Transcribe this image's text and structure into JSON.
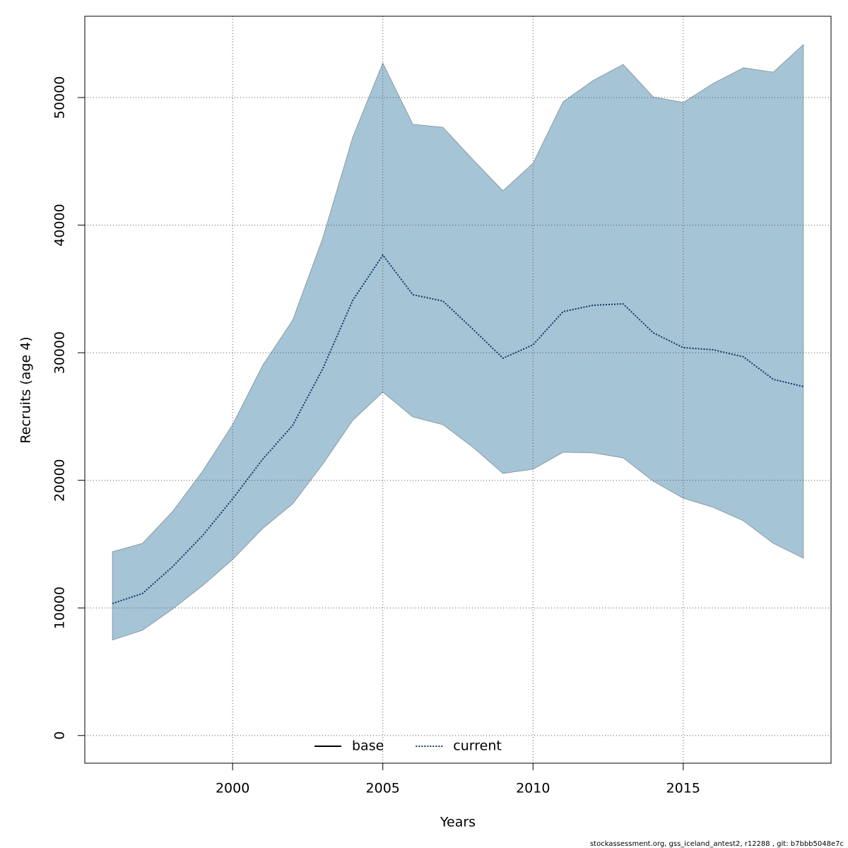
{
  "chart_data": {
    "type": "line",
    "xlabel": "Years",
    "ylabel": "Recruits (age 4)",
    "footer": "stockassessment.org, gss_iceland_antest2, r12288 , git: b7bbb5048e7c",
    "x": [
      1996,
      1997,
      1998,
      1999,
      2000,
      2001,
      2002,
      2003,
      2004,
      2005,
      2006,
      2007,
      2008,
      2009,
      2010,
      2011,
      2012,
      2013,
      2014,
      2015,
      2016,
      2017,
      2018,
      2019
    ],
    "series": [
      {
        "name": "base",
        "color": "#000000",
        "dash": "solid",
        "values": [
          null,
          null,
          null,
          null,
          null,
          null,
          null,
          null,
          null,
          null,
          null,
          null,
          null,
          null,
          null,
          null,
          null,
          null,
          null,
          null,
          null,
          null,
          null,
          null
        ]
      },
      {
        "name": "current",
        "color": "#0a3a6b",
        "dash": "dotted",
        "values": [
          10350,
          11130,
          13230,
          15670,
          18550,
          21650,
          24310,
          28740,
          34110,
          37650,
          34550,
          34050,
          31840,
          29570,
          30620,
          33220,
          33720,
          33830,
          31560,
          30400,
          30230,
          29680,
          27910,
          27350
        ]
      }
    ],
    "band": {
      "color": "#a5c4d5",
      "upper": [
        14400,
        15060,
        17550,
        20710,
        24360,
        29010,
        32560,
        38980,
        46900,
        52710,
        47900,
        47670,
        45130,
        42690,
        44850,
        49670,
        51330,
        52600,
        50050,
        49610,
        51110,
        52330,
        51990,
        54150
      ],
      "lower": [
        7480,
        8250,
        9910,
        11740,
        13790,
        16220,
        18160,
        21260,
        24700,
        26910,
        24970,
        24360,
        22590,
        20540,
        20870,
        22200,
        22150,
        21760,
        19930,
        18600,
        17880,
        16830,
        15060,
        13900
      ]
    },
    "xlim": [
      1995.08,
      2019.92
    ],
    "xticks": [
      2000,
      2005,
      2010,
      2015
    ],
    "ylim": [
      -2170,
      56370
    ],
    "yticks": [
      0,
      10000,
      20000,
      30000,
      40000,
      50000
    ],
    "grid": true,
    "legend": "bottom"
  }
}
